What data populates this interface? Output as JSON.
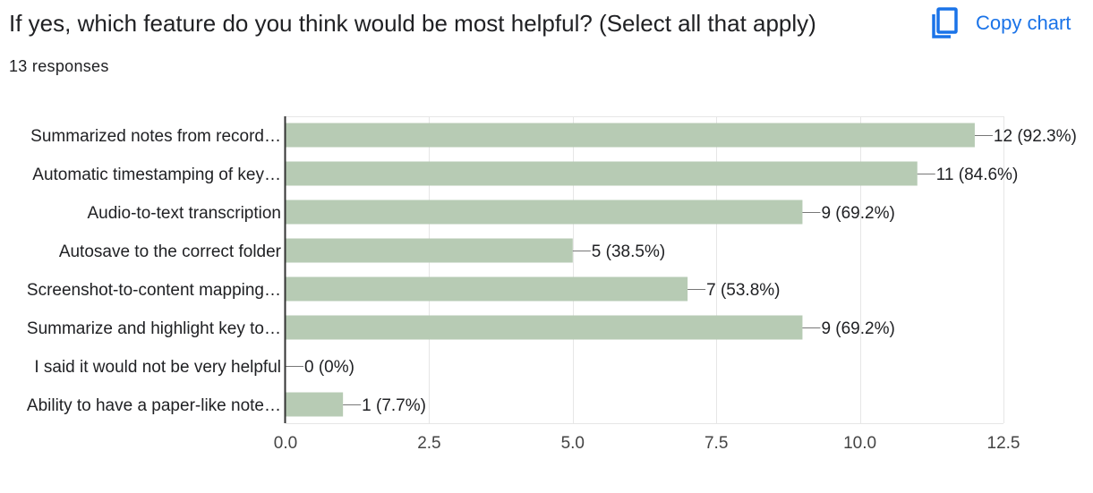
{
  "header": {
    "title": "If yes, which feature do you think would be most helpful? (Select all that apply)",
    "responses": "13 responses",
    "copy_label": "Copy chart",
    "copy_icon": "copy-icon"
  },
  "colors": {
    "bar": "#b7cbb4",
    "axis": "#333333",
    "grid": "#e6e6e6",
    "text": "#202124",
    "tick_text": "#444444",
    "accent": "#1a73e8"
  },
  "chart_data": {
    "type": "bar",
    "orientation": "horizontal",
    "categories": [
      "Summarized notes from record…",
      "Automatic timestamping of key…",
      "Audio-to-text transcription",
      "Autosave to the correct folder",
      "Screenshot-to-content mapping…",
      "Summarize and highlight key to…",
      "I said it would not be very helpful",
      "Ability to have a paper-like note…"
    ],
    "values": [
      12,
      11,
      9,
      5,
      7,
      9,
      0,
      1
    ],
    "data_labels": [
      "12 (92.3%)",
      "11 (84.6%)",
      "9 (69.2%)",
      "5 (38.5%)",
      "7 (53.8%)",
      "9 (69.2%)",
      "0 (0%)",
      "1 (7.7%)"
    ],
    "xlim": [
      0,
      12.5
    ],
    "xticks": [
      "0.0",
      "2.5",
      "5.0",
      "7.5",
      "10.0",
      "12.5"
    ],
    "xtick_values": [
      0,
      2.5,
      5,
      7.5,
      10,
      12.5
    ],
    "grid": true,
    "legend": "none",
    "title": "If yes, which feature do you think would be most helpful? (Select all that apply)",
    "xlabel": "",
    "ylabel": ""
  }
}
